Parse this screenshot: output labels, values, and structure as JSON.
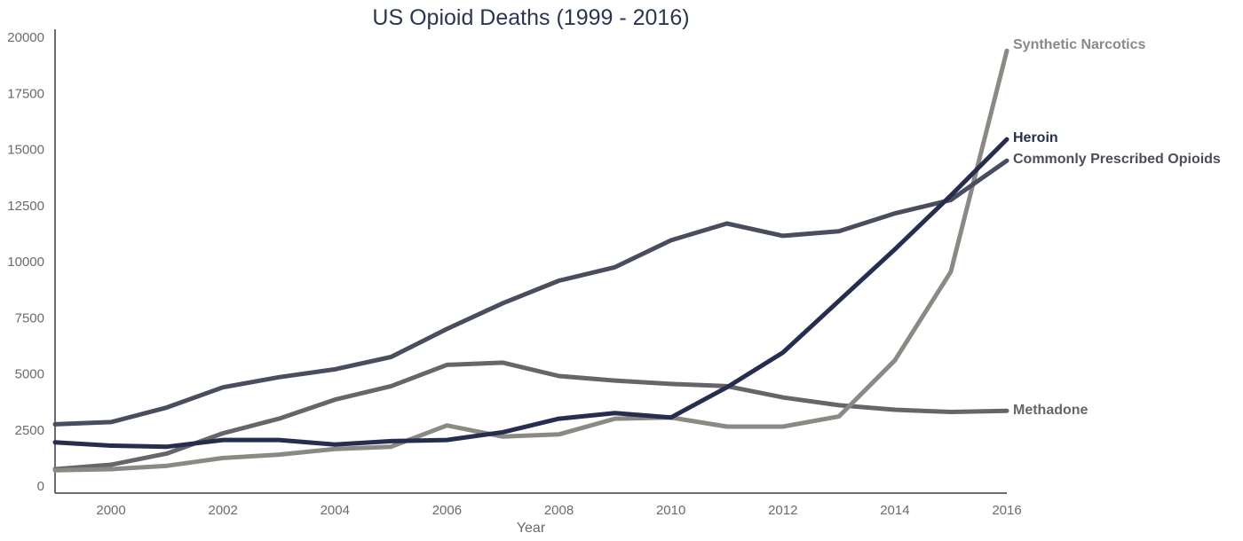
{
  "chart_data": {
    "type": "line",
    "title": "US Opioid Deaths (1999 - 2016)",
    "xlabel": "Year",
    "ylabel": "",
    "xlim": [
      1999,
      2016
    ],
    "ylim": [
      0,
      20000
    ],
    "x_ticks": [
      2000,
      2002,
      2004,
      2006,
      2008,
      2010,
      2012,
      2014,
      2016
    ],
    "y_ticks": [
      0,
      2500,
      5000,
      7500,
      10000,
      12500,
      15000,
      17500,
      20000
    ],
    "grid": false,
    "legend": "end-of-line labels",
    "x": [
      1999,
      2000,
      2001,
      2002,
      2003,
      2004,
      2005,
      2006,
      2007,
      2008,
      2009,
      2010,
      2011,
      2012,
      2013,
      2014,
      2015,
      2016
    ],
    "series": [
      {
        "name": "Commonly Prescribed Opioids",
        "color": "#4a4d5e",
        "values": [
          2750,
          2850,
          3500,
          4400,
          4850,
          5200,
          5750,
          7000,
          8150,
          9150,
          9750,
          10950,
          11700,
          11150,
          11350,
          12150,
          12750,
          14500
        ]
      },
      {
        "name": "Heroin",
        "color": "#252e4f",
        "values": [
          1950,
          1800,
          1750,
          2050,
          2050,
          1850,
          2000,
          2050,
          2400,
          3000,
          3250,
          3050,
          4400,
          5950,
          8250,
          10550,
          12950,
          15450
        ]
      },
      {
        "name": "Synthetic Narcotics",
        "color": "#8a8a84",
        "values": [
          700,
          750,
          900,
          1250,
          1400,
          1650,
          1750,
          2700,
          2200,
          2300,
          3000,
          3050,
          2650,
          2650,
          3100,
          5600,
          9550,
          19400
        ]
      },
      {
        "name": "Methadone",
        "color": "#66666a",
        "values": [
          750,
          950,
          1450,
          2350,
          3000,
          3850,
          4450,
          5400,
          5500,
          4900,
          4700,
          4550,
          4450,
          3950,
          3600,
          3400,
          3300,
          3350
        ]
      }
    ]
  }
}
